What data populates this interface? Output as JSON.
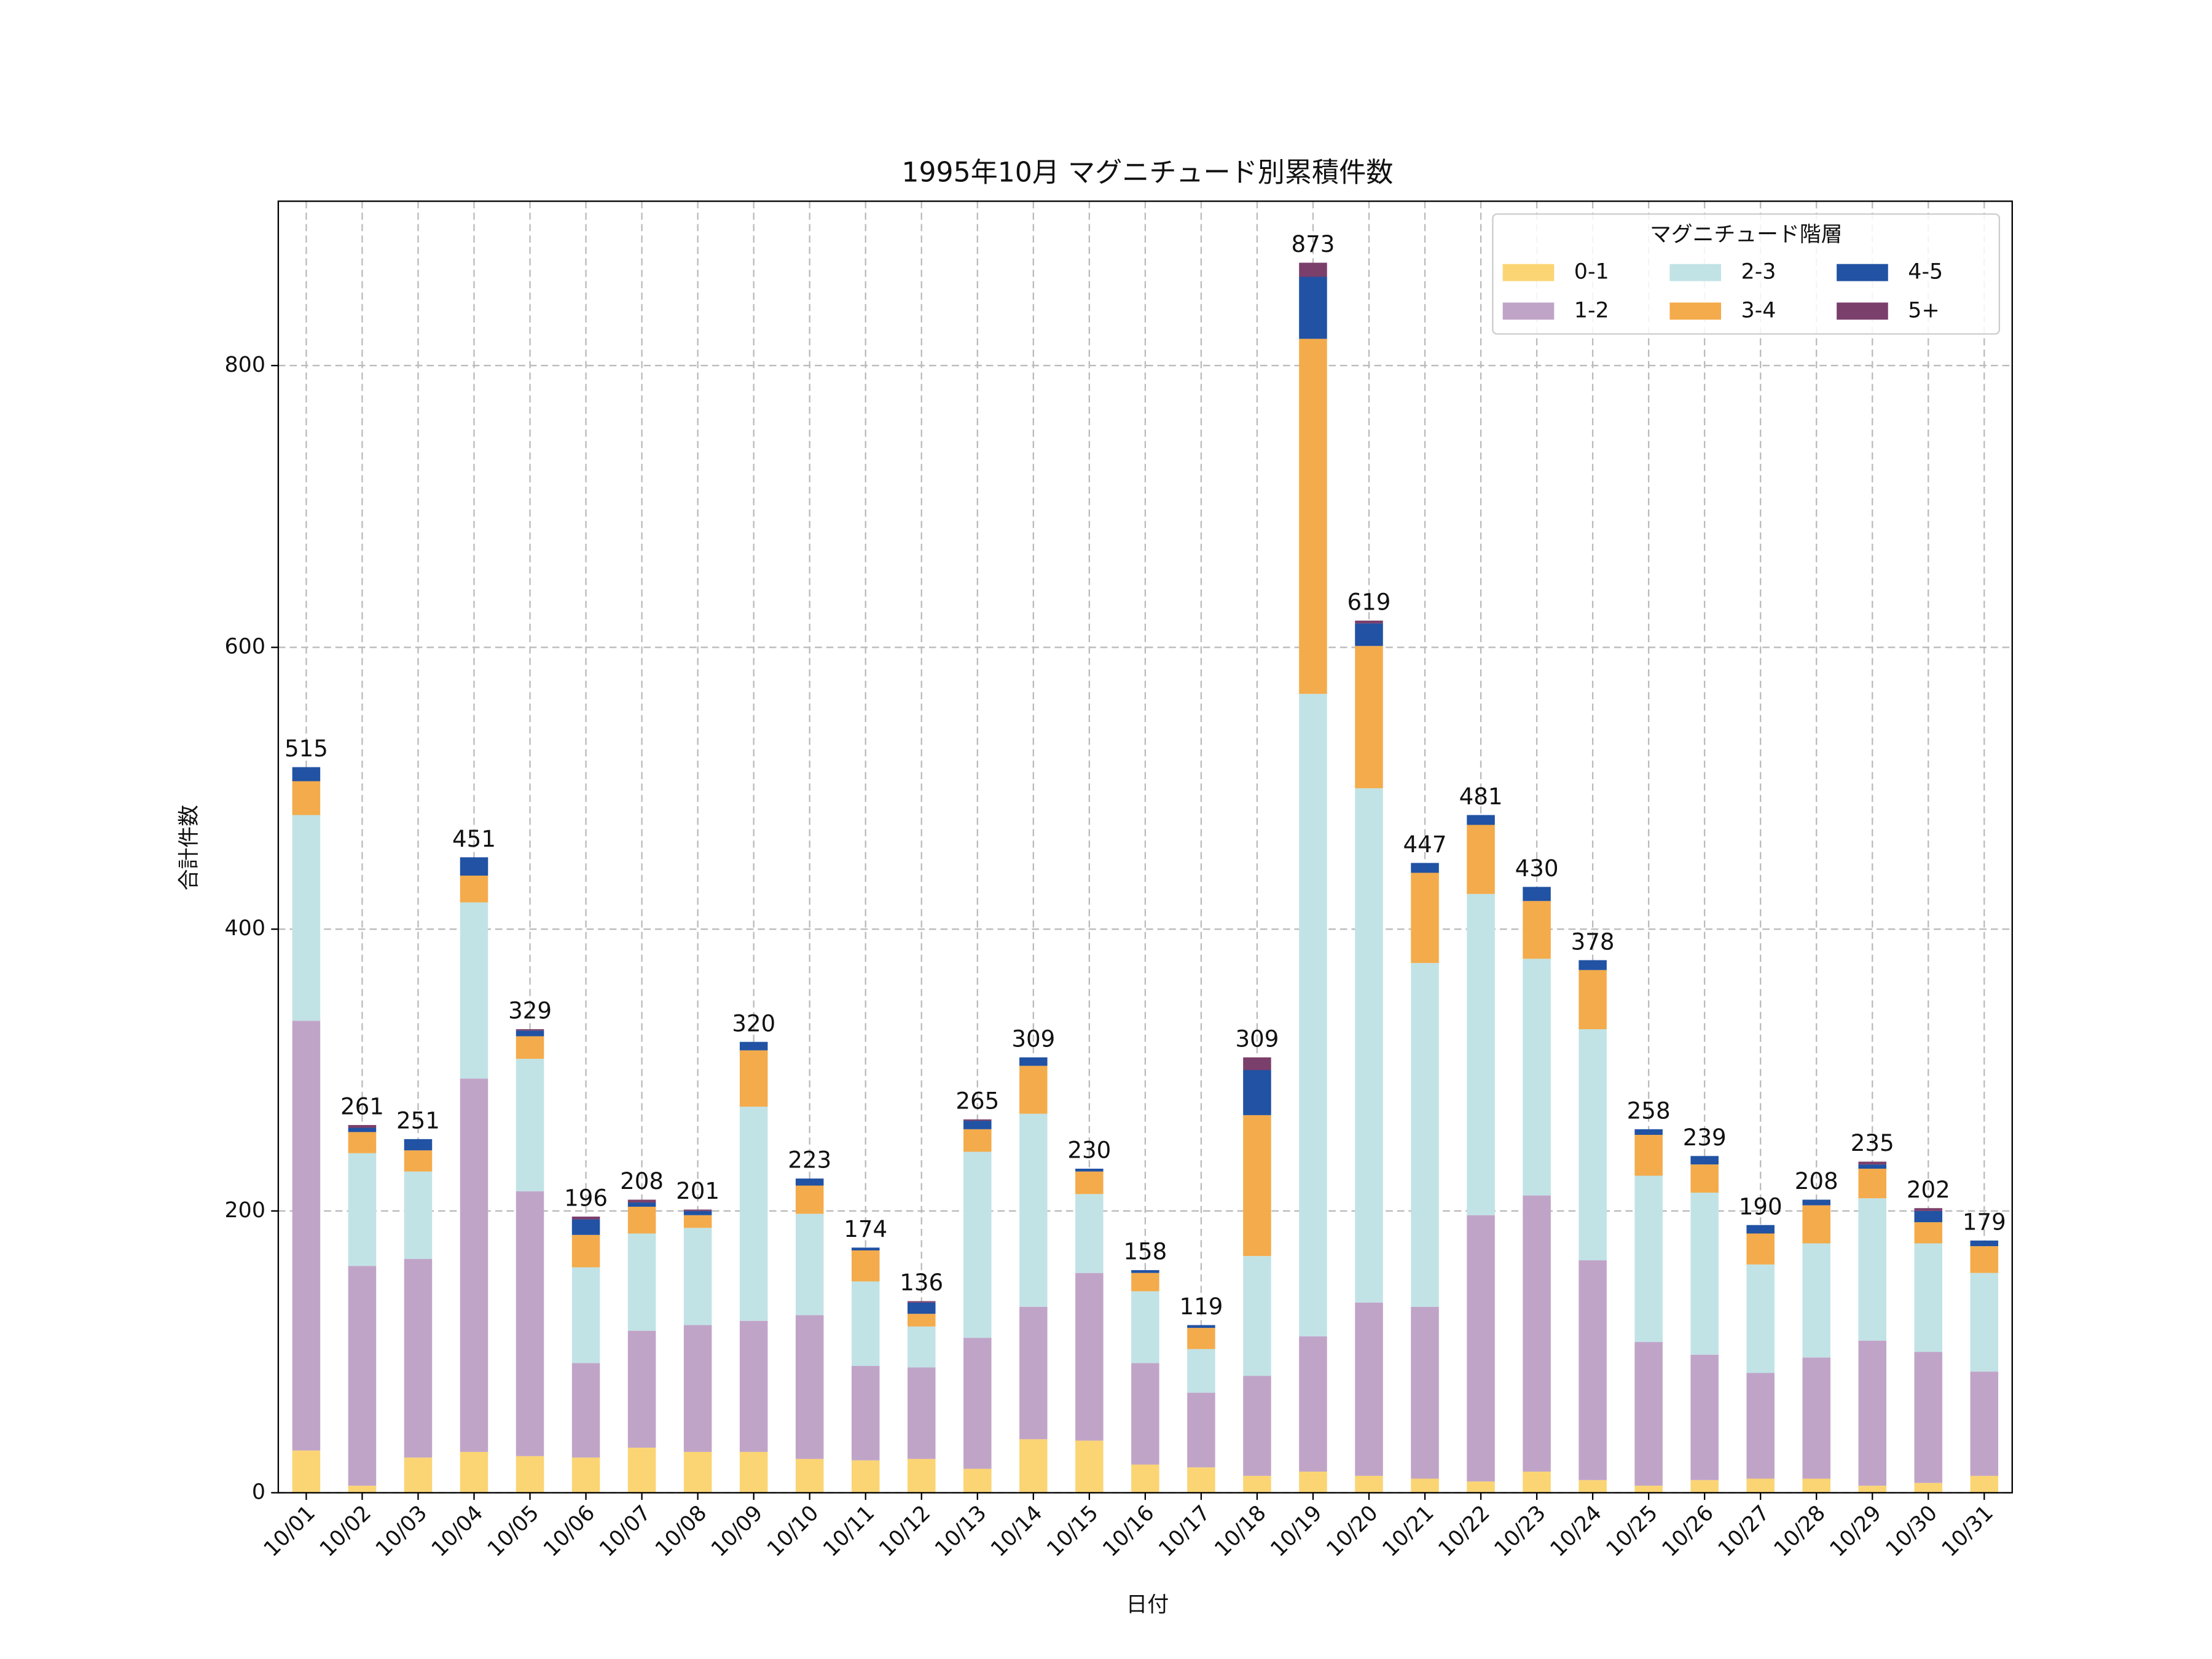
{
  "chart_data": {
    "type": "stacked_bar",
    "title": "1995年10月 マグニチュード別累積件数",
    "x_label": "日付",
    "y_label": "合計件数",
    "categories": [
      "10/01",
      "10/02",
      "10/03",
      "10/04",
      "10/05",
      "10/06",
      "10/07",
      "10/08",
      "10/09",
      "10/10",
      "10/11",
      "10/12",
      "10/13",
      "10/14",
      "10/15",
      "10/16",
      "10/17",
      "10/18",
      "10/19",
      "10/20",
      "10/21",
      "10/22",
      "10/23",
      "10/24",
      "10/25",
      "10/26",
      "10/27",
      "10/28",
      "10/29",
      "10/30",
      "10/31"
    ],
    "series": [
      {
        "name": "0-1",
        "color": "#fbd574",
        "values": [
          30,
          5,
          25,
          29,
          26,
          25,
          32,
          29,
          29,
          24,
          23,
          24,
          17,
          38,
          37,
          20,
          18,
          12,
          15,
          12,
          10,
          8,
          15,
          9,
          5,
          9,
          10,
          10,
          5,
          7,
          12
        ]
      },
      {
        "name": "1-2",
        "color": "#c0a4c8",
        "values": [
          305,
          156,
          141,
          265,
          188,
          67,
          83,
          90,
          93,
          102,
          67,
          65,
          93,
          94,
          119,
          72,
          53,
          71,
          96,
          123,
          122,
          189,
          196,
          156,
          102,
          89,
          75,
          86,
          103,
          93,
          74
        ]
      },
      {
        "name": "2-3",
        "color": "#c1e3e6",
        "values": [
          146,
          80,
          62,
          125,
          94,
          68,
          69,
          69,
          152,
          72,
          60,
          29,
          132,
          137,
          56,
          51,
          31,
          85,
          456,
          365,
          244,
          228,
          168,
          164,
          118,
          115,
          77,
          81,
          101,
          77,
          70
        ]
      },
      {
        "name": "3-4",
        "color": "#f4ab4b",
        "values": [
          24,
          15,
          15,
          19,
          16,
          23,
          19,
          9,
          40,
          20,
          22,
          9,
          16,
          34,
          16,
          13,
          15,
          100,
          252,
          101,
          64,
          49,
          41,
          42,
          29,
          20,
          22,
          27,
          21,
          15,
          19
        ]
      },
      {
        "name": "4-5",
        "color": "#2152a3",
        "values": [
          10,
          3,
          8,
          13,
          4,
          11,
          3,
          3,
          6,
          5,
          2,
          8,
          6,
          6,
          2,
          2,
          2,
          32,
          44,
          16,
          7,
          7,
          10,
          7,
          4,
          6,
          6,
          4,
          3,
          8,
          4
        ]
      },
      {
        "name": "5+",
        "color": "#7b3f6b",
        "values": [
          0,
          2,
          0,
          0,
          1,
          2,
          2,
          1,
          0,
          0,
          0,
          1,
          1,
          0,
          0,
          0,
          0,
          9,
          10,
          2,
          0,
          0,
          0,
          0,
          0,
          0,
          0,
          0,
          2,
          2,
          0
        ]
      }
    ],
    "totals": [
      515,
      261,
      251,
      451,
      329,
      196,
      208,
      201,
      320,
      223,
      174,
      136,
      265,
      309,
      230,
      158,
      119,
      309,
      873,
      619,
      447,
      481,
      430,
      378,
      258,
      239,
      190,
      208,
      235,
      202,
      179
    ],
    "ylim": [
      0,
      916.65
    ],
    "yticks": [
      0,
      200,
      400,
      600,
      800
    ],
    "grid": true,
    "legend_title": "マグニチュード階層",
    "legend_loc": "upper right",
    "legend_columns": 3
  }
}
